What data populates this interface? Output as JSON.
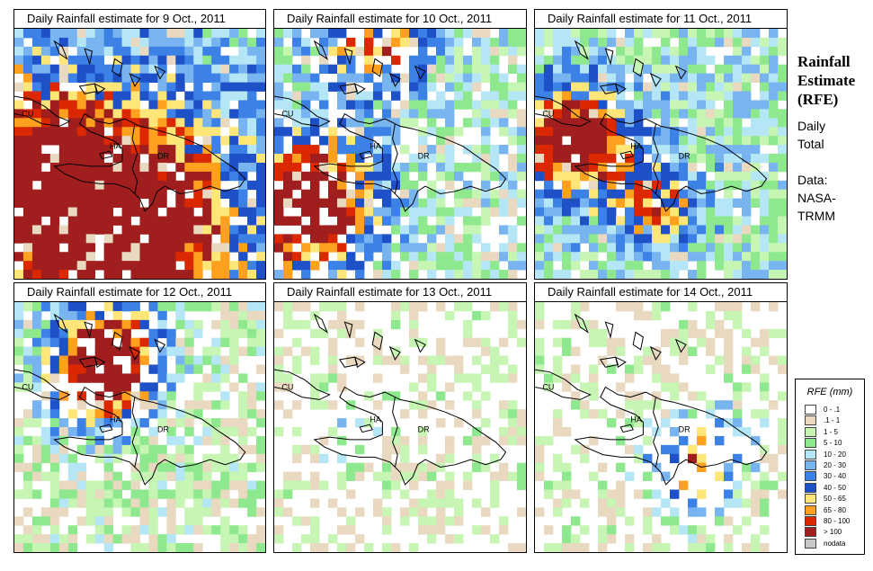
{
  "side": {
    "title_lines": [
      "Rainfall",
      "Estimate",
      "(RFE)"
    ],
    "daily": "Daily",
    "total": "Total",
    "data_label": "Data:",
    "source_1": "NASA-",
    "source_2": "TRMM"
  },
  "legend": {
    "title": "RFE (mm)",
    "items": [
      {
        "label": "0 - .1",
        "color": "#ffffff"
      },
      {
        "label": ".1 - 1",
        "color": "#e8d9c0"
      },
      {
        "label": "1 - 5",
        "color": "#c6f5b4"
      },
      {
        "label": "5 - 10",
        "color": "#8ee88e"
      },
      {
        "label": "10 - 20",
        "color": "#b4e6f5"
      },
      {
        "label": "20 - 30",
        "color": "#78b4f0"
      },
      {
        "label": "30 - 40",
        "color": "#3c82e6"
      },
      {
        "label": "40 - 50",
        "color": "#1e50c8"
      },
      {
        "label": "50 - 65",
        "color": "#ffe678"
      },
      {
        "label": "65 - 80",
        "color": "#ffa01e"
      },
      {
        "label": "80 - 100",
        "color": "#dc2800"
      },
      {
        "label": "> 100",
        "color": "#a01e1e"
      },
      {
        "label": "nodata",
        "color": "#c8c8c8"
      }
    ]
  },
  "labels": {
    "cuba": "CU",
    "haiti": "HA",
    "dr": "DR"
  },
  "panels": [
    {
      "title": "Daily Rainfall estimate for  9 Oct., 2011",
      "seed": 11,
      "fill": 0.93,
      "intensity": 0.82,
      "hot_x": 0.42,
      "hot_y": 0.8,
      "hot_r": 0.45,
      "hot_amp": 1.0,
      "hot2_x": 0.05,
      "hot2_y": 0.55,
      "hot2_amp": 0.7
    },
    {
      "title": "Daily Rainfall estimate for  10 Oct., 2011",
      "seed": 23,
      "fill": 0.78,
      "intensity": 0.55,
      "hot_x": 0.12,
      "hot_y": 0.7,
      "hot_r": 0.28,
      "hot_amp": 1.1,
      "hot2_x": 0.4,
      "hot2_y": 0.05,
      "hot2_amp": 0.8
    },
    {
      "title": "Daily Rainfall estimate for  11 Oct., 2011",
      "seed": 37,
      "fill": 0.9,
      "intensity": 0.62,
      "hot_x": 0.15,
      "hot_y": 0.45,
      "hot_r": 0.22,
      "hot_amp": 1.0,
      "hot2_x": 0.48,
      "hot2_y": 0.7,
      "hot2_amp": 0.7
    },
    {
      "title": "Daily Rainfall estimate for  12 Oct., 2011",
      "seed": 51,
      "fill": 0.72,
      "intensity": 0.35,
      "hot_x": 0.38,
      "hot_y": 0.2,
      "hot_r": 0.25,
      "hot_amp": 0.9,
      "hot2_x": 0.3,
      "hot2_y": 0.35,
      "hot2_amp": 0.5
    },
    {
      "title": "Daily Rainfall estimate for  13 Oct., 2011",
      "seed": 67,
      "fill": 0.4,
      "intensity": 0.12,
      "hot_x": 0.3,
      "hot_y": 0.55,
      "hot_r": 0.15,
      "hot_amp": 0.3,
      "hot2_x": 0.8,
      "hot2_y": 0.6,
      "hot2_amp": 0.2
    },
    {
      "title": "Daily Rainfall estimate for  14 Oct., 2011",
      "seed": 83,
      "fill": 0.45,
      "intensity": 0.18,
      "hot_x": 0.62,
      "hot_y": 0.68,
      "hot_r": 0.2,
      "hot_amp": 0.7,
      "hot2_x": 0.7,
      "hot2_y": 0.55,
      "hot2_amp": 0.4
    }
  ]
}
